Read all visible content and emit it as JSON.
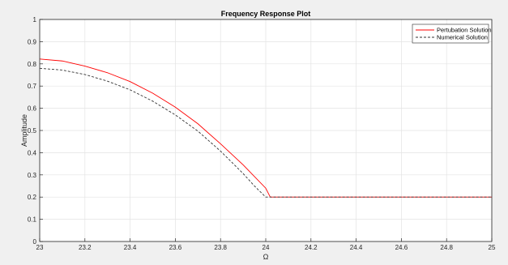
{
  "chart_data": {
    "type": "line",
    "title": "Frequency Response Plot",
    "xlabel": "Ω",
    "ylabel": "Amplitude",
    "xlim": [
      23,
      25
    ],
    "ylim": [
      0,
      1
    ],
    "xticks": [
      "23",
      "23.2",
      "23.4",
      "23.6",
      "23.8",
      "24",
      "24.2",
      "24.4",
      "24.6",
      "24.8",
      "25"
    ],
    "yticks": [
      "0",
      "0.1",
      "0.2",
      "0.3",
      "0.4",
      "0.5",
      "0.6",
      "0.7",
      "0.8",
      "0.9",
      "1"
    ],
    "grid": true,
    "legend_position": "top-right",
    "series": [
      {
        "name": "Pertubation Solution",
        "color": "#ff0000",
        "style": "solid",
        "x": [
          23.0,
          23.1,
          23.2,
          23.3,
          23.4,
          23.5,
          23.6,
          23.7,
          23.8,
          23.9,
          24.0,
          24.02,
          24.2,
          24.4,
          24.6,
          24.8,
          25.0
        ],
        "y": [
          0.822,
          0.813,
          0.79,
          0.76,
          0.72,
          0.668,
          0.605,
          0.53,
          0.44,
          0.345,
          0.24,
          0.2,
          0.2,
          0.2,
          0.2,
          0.2,
          0.2
        ]
      },
      {
        "name": "Numerical Solution",
        "color": "#333333",
        "style": "dashed",
        "x": [
          23.0,
          23.1,
          23.2,
          23.3,
          23.4,
          23.5,
          23.6,
          23.7,
          23.8,
          23.9,
          23.95,
          24.0,
          24.2,
          24.4,
          24.6,
          24.8,
          25.0
        ],
        "y": [
          0.78,
          0.772,
          0.752,
          0.722,
          0.683,
          0.632,
          0.57,
          0.497,
          0.407,
          0.306,
          0.25,
          0.2,
          0.2,
          0.2,
          0.2,
          0.2,
          0.2
        ]
      }
    ]
  }
}
